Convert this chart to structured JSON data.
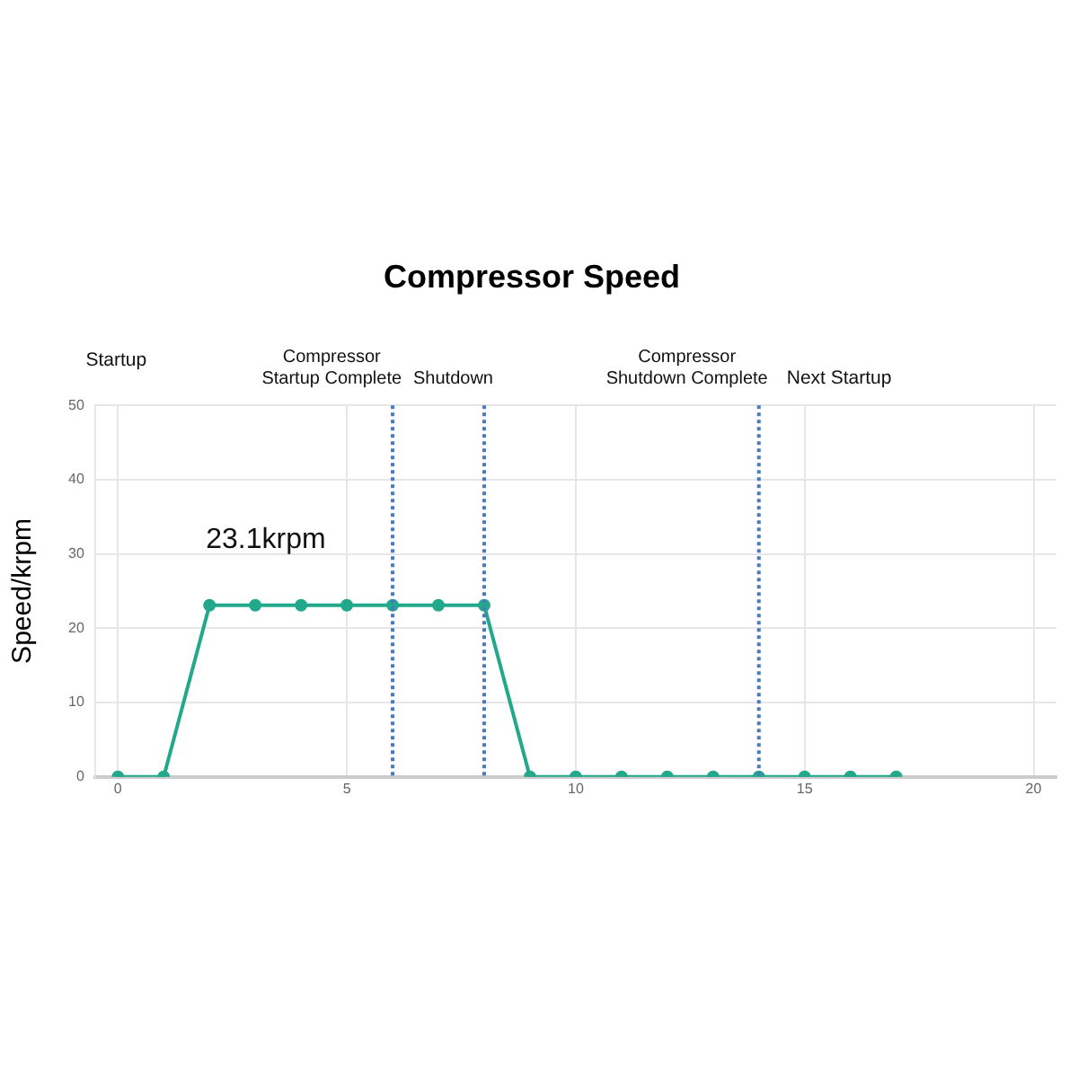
{
  "chart_data": {
    "type": "line",
    "title": "Compressor Speed",
    "ylabel": "Speed/krpm",
    "x": [
      0,
      1,
      2,
      3,
      4,
      5,
      6,
      7,
      8,
      9,
      10,
      11,
      12,
      13,
      14,
      15,
      16,
      17
    ],
    "values": [
      0,
      0,
      23.1,
      23.1,
      23.1,
      23.1,
      23.1,
      23.1,
      23.1,
      0,
      0,
      0,
      0,
      0,
      0,
      0,
      0,
      0
    ],
    "value_labels": [
      null,
      null,
      "23.1krpm",
      null,
      null,
      null,
      null,
      null,
      null,
      null,
      null,
      null,
      null,
      null,
      null,
      null,
      null,
      null
    ],
    "color": "#22a98b",
    "marker": "circle",
    "line_style": "solid",
    "xlim": [
      -0.5,
      20.5
    ],
    "xticks": [
      0,
      5,
      10,
      15,
      20
    ],
    "ylim": [
      0,
      50
    ],
    "yticks": [
      0,
      10,
      20,
      30,
      40,
      50
    ],
    "grid": true,
    "ref_lines": [
      {
        "axis": "x",
        "value": 6,
        "label": "Compressor\nStartup Complete",
        "color": "#4a78c2",
        "line_style": "dotted"
      },
      {
        "axis": "x",
        "value": 8,
        "label": "Shutdown",
        "color": "#4a78c2",
        "line_style": "dotted"
      },
      {
        "axis": "x",
        "value": 14,
        "label": "Compressor\nShutdown Complete",
        "color": "#4a78c2",
        "line_style": "dotted"
      }
    ],
    "annotations": [
      "Startup",
      "Next Startup"
    ]
  }
}
